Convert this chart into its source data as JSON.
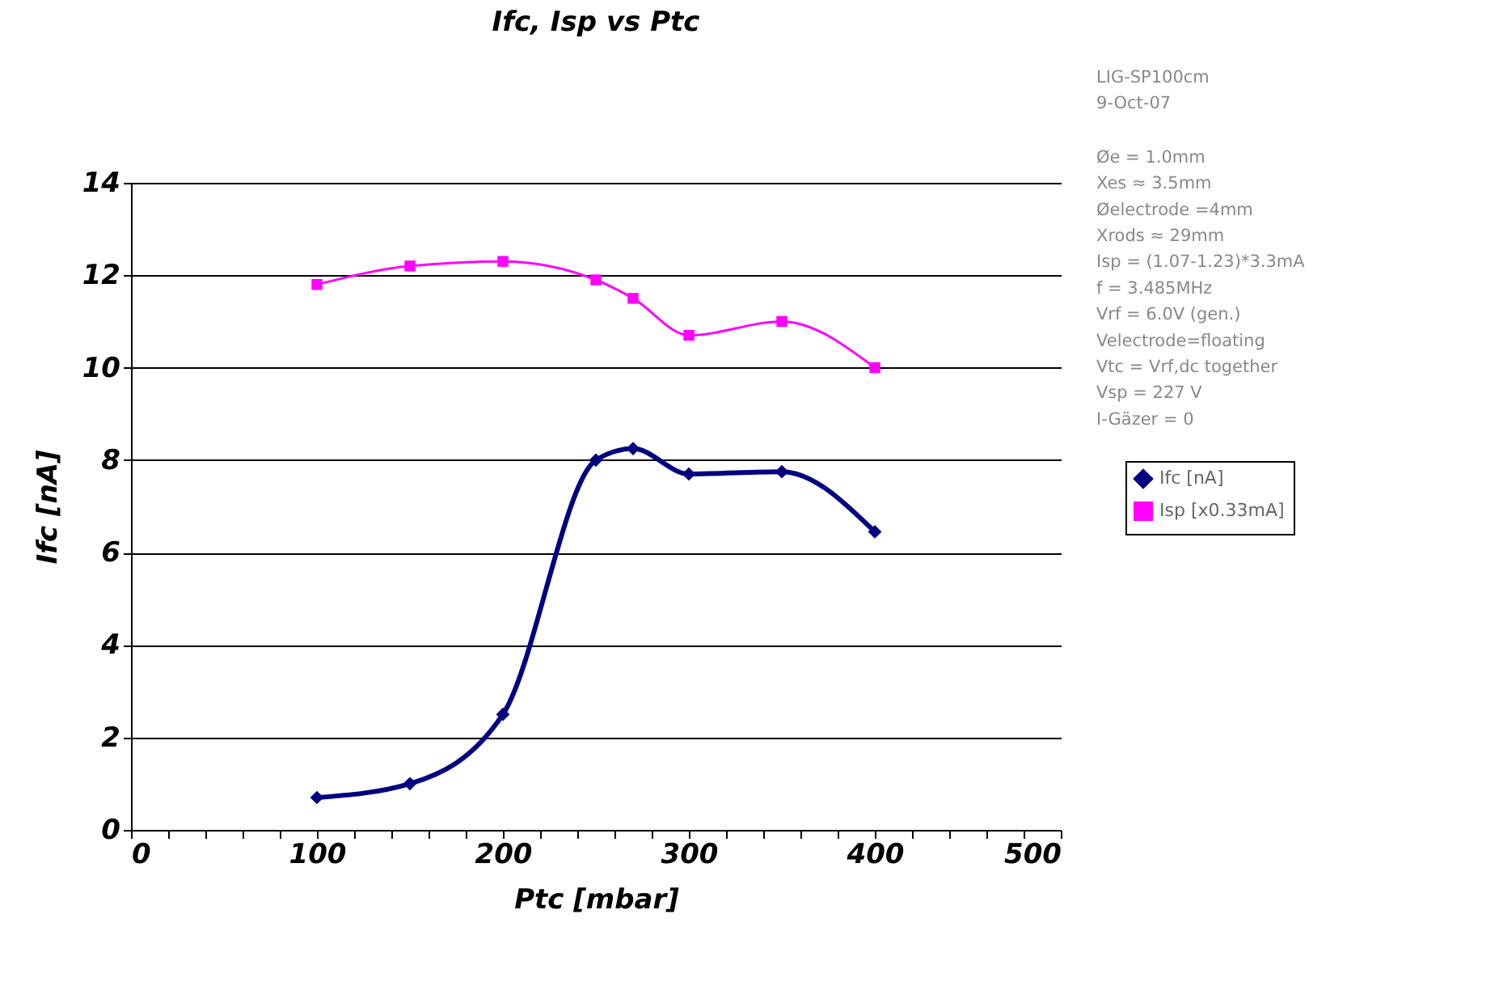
{
  "chart_data": {
    "type": "line",
    "title": "Ifc, Isp vs Ptc",
    "xlabel": "Ptc [mbar]",
    "ylabel": "Ifc [nA]",
    "x": [
      100,
      150,
      200,
      250,
      270,
      300,
      350,
      400
    ],
    "series": [
      {
        "name": "Ifc [nA]",
        "color": "#000080",
        "marker": "diamond",
        "values": [
          0.7,
          1.0,
          2.5,
          8.0,
          8.25,
          7.7,
          7.75,
          6.45
        ]
      },
      {
        "name": "Isp [x0.33mA]",
        "color": "#ff00ff",
        "marker": "square",
        "values": [
          11.8,
          12.2,
          12.3,
          11.9,
          11.5,
          10.7,
          11.0,
          10.0
        ]
      }
    ],
    "xlim": [
      0,
      500
    ],
    "xticks": [
      0,
      {
        "value": 20,
        "label": null
      },
      {
        "value": 40,
        "label": null
      },
      {
        "value": 60,
        "label": null
      },
      {
        "value": 80,
        "label": null
      },
      100,
      {
        "value": 120,
        "label": null
      },
      {
        "value": 140,
        "label": null
      },
      {
        "value": 160,
        "label": null
      },
      {
        "value": 180,
        "label": null
      },
      200,
      {
        "value": 220,
        "label": null
      },
      {
        "value": 240,
        "label": null
      },
      {
        "value": 260,
        "label": null
      },
      {
        "value": 280,
        "label": null
      },
      300,
      {
        "value": 320,
        "label": null
      },
      {
        "value": 340,
        "label": null
      },
      {
        "value": 360,
        "label": null
      },
      {
        "value": 380,
        "label": null
      },
      400,
      {
        "value": 420,
        "label": null
      },
      {
        "value": 440,
        "label": null
      },
      {
        "value": 460,
        "label": null
      },
      {
        "value": 480,
        "label": null
      },
      500
    ],
    "ylim": [
      0,
      14
    ],
    "yticks": [
      0,
      2,
      4,
      6,
      8,
      10,
      12,
      14
    ],
    "grid": "y",
    "legend": "right",
    "line_style": "solid",
    "annotations": [
      "LIG-SP100cm",
      "9-Oct-07",
      "Øe = 1.0mm",
      "Xes ≈ 3.5mm",
      "Øelectrode =4mm",
      "Xrods ≈ 29mm",
      "Isp = (1.07-1.23)*3.3mA",
      "f = 3.485MHz",
      "Vrf = 6.0V (gen.)",
      "Velectrode=floating",
      "Vtc = Vrf,dc together",
      "Vsp = 227 V",
      "I-Gäzer = 0"
    ]
  }
}
